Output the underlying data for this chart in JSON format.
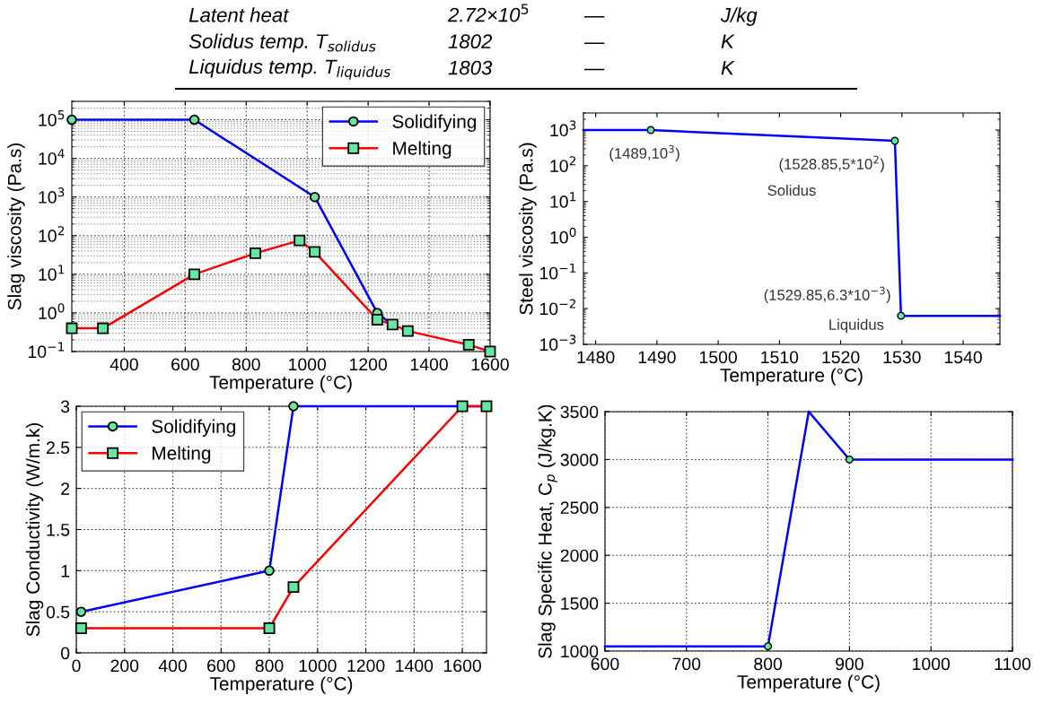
{
  "chart_data": [
    {
      "type": "other",
      "annotations": [
        "Latent heat",
        "2.72×10$^{5}$",
        "—",
        "J/kg",
        "Solidus temp. T$_{solidus}$",
        "1802",
        "—",
        "K",
        "Liquidus temp. T$_{liquidus}$",
        "1803",
        "—",
        "K"
      ]
    },
    {
      "type": "line",
      "xlabel": "Temperature (°C)",
      "ylabel": "Slag viscosity (Pa.s)",
      "log": "y",
      "grid": true,
      "legend": "top right",
      "xlim": [
        228,
        1600
      ],
      "xticks": [
        400,
        600,
        800,
        1000,
        1200,
        1400,
        1600
      ],
      "ylim": [
        0.1,
        300000
      ],
      "yticks": [
        {
          "value": 0.1,
          "label": "10$^{−1}$"
        },
        {
          "value": 1,
          "label": "10$^{0}$"
        },
        {
          "value": 10,
          "label": "10$^{1}$"
        },
        {
          "value": 100,
          "label": "10$^{2}$"
        },
        {
          "value": 1000,
          "label": "10$^{3}$"
        },
        {
          "value": 10000,
          "label": "10$^{4}$"
        },
        {
          "value": 100000,
          "label": "10$^{5}$"
        }
      ],
      "series": [
        {
          "name": "Solidifying",
          "color": "#0000ff",
          "marker": "circle",
          "x": [
            228,
            630,
            1025,
            1230,
            1278
          ],
          "values": [
            100000,
            100000,
            1000,
            1,
            0.5
          ]
        },
        {
          "name": "Melting",
          "color": "#ff0000",
          "marker": "square",
          "x": [
            228,
            330,
            630,
            830,
            975,
            1025,
            1230,
            1280,
            1330,
            1530,
            1600
          ],
          "values": [
            0.4,
            0.4,
            10,
            35,
            75,
            38,
            0.67,
            0.5,
            0.34,
            0.15,
            0.1
          ]
        }
      ]
    },
    {
      "type": "line",
      "xlabel": "Temperature (°C)",
      "ylabel": "Steel viscosity (Pa.s)",
      "log": "y",
      "grid": false,
      "xlim": [
        1478,
        1546
      ],
      "xticks": [
        1480,
        1490,
        1500,
        1510,
        1520,
        1530,
        1540
      ],
      "ylim": [
        0.001,
        3000
      ],
      "yticks": [
        {
          "value": 0.001,
          "label": "10$^{−3}$"
        },
        {
          "value": 0.01,
          "label": "10$^{−2}$"
        },
        {
          "value": 0.1,
          "label": "10$^{−1}$"
        },
        {
          "value": 1,
          "label": "10$^{0}$"
        },
        {
          "value": 10,
          "label": "10$^{1}$"
        },
        {
          "value": 100,
          "label": "10$^{2}$"
        },
        {
          "value": 1000,
          "label": "10$^{3}$"
        }
      ],
      "series": [
        {
          "color": "#0000ff",
          "x": [
            1478,
            1489,
            1528.85,
            1529.85,
            1546
          ],
          "values": [
            1000,
            1000,
            500,
            0.0063,
            0.0063
          ]
        },
        {
          "type": "scatter",
          "color": "#66e6a0",
          "marker": "circle",
          "x": [
            1489,
            1528.85,
            1529.85
          ],
          "values": [
            1000,
            500,
            0.0063
          ]
        }
      ],
      "annotations": [
        {
          "text": "(1489,10$^{3}$)",
          "x": 1489,
          "y": 1000
        },
        {
          "text": "(1528.85,5*10$^{2}$)",
          "x": 1528.85,
          "y": 500
        },
        {
          "text": "(1529.85,6.3*10$^{−3}$)",
          "x": 1529.85,
          "y": 0.0063
        },
        "Solidus",
        "Liquidus"
      ]
    },
    {
      "type": "line",
      "xlabel": "Temperature (°C)",
      "ylabel": "Slag Conductivity (W/m.k)",
      "grid": true,
      "legend": "top left",
      "xlim": [
        0,
        1700
      ],
      "xticks": [
        0,
        200,
        400,
        600,
        800,
        1000,
        1200,
        1400,
        1600
      ],
      "ylim": [
        0,
        3
      ],
      "yticks": [
        0,
        0.5,
        1,
        1.5,
        2,
        2.5,
        3
      ],
      "series": [
        {
          "name": "Solidifying",
          "color": "#0000ff",
          "marker": "circle",
          "x": [
            20,
            800,
            900,
            1700
          ],
          "values": [
            0.5,
            1,
            3,
            3
          ]
        },
        {
          "name": "Melting",
          "color": "#ff0000",
          "marker": "square",
          "x": [
            20,
            800,
            900,
            1600,
            1700
          ],
          "values": [
            0.3,
            0.3,
            0.8,
            3,
            3
          ]
        }
      ]
    },
    {
      "type": "line",
      "xlabel": "Temperature (°C)",
      "ylabel": "Slag Specific Heat, C$_{p}$ (J/kg.K)",
      "grid": true,
      "xlim": [
        600,
        1100
      ],
      "xticks": [
        600,
        700,
        800,
        900,
        1000,
        1100
      ],
      "ylim": [
        1000,
        3500
      ],
      "yticks": [
        1000,
        1500,
        2000,
        2500,
        3000,
        3500
      ],
      "series": [
        {
          "color": "#0000ff",
          "x": [
            600,
            800,
            850,
            900,
            1100
          ],
          "values": [
            1050,
            1050,
            3500,
            3000,
            3000
          ]
        },
        {
          "type": "scatter",
          "color": "#66e6a0",
          "marker": "circle",
          "x": [
            800,
            900
          ],
          "values": [
            1050,
            3000
          ]
        }
      ]
    }
  ]
}
